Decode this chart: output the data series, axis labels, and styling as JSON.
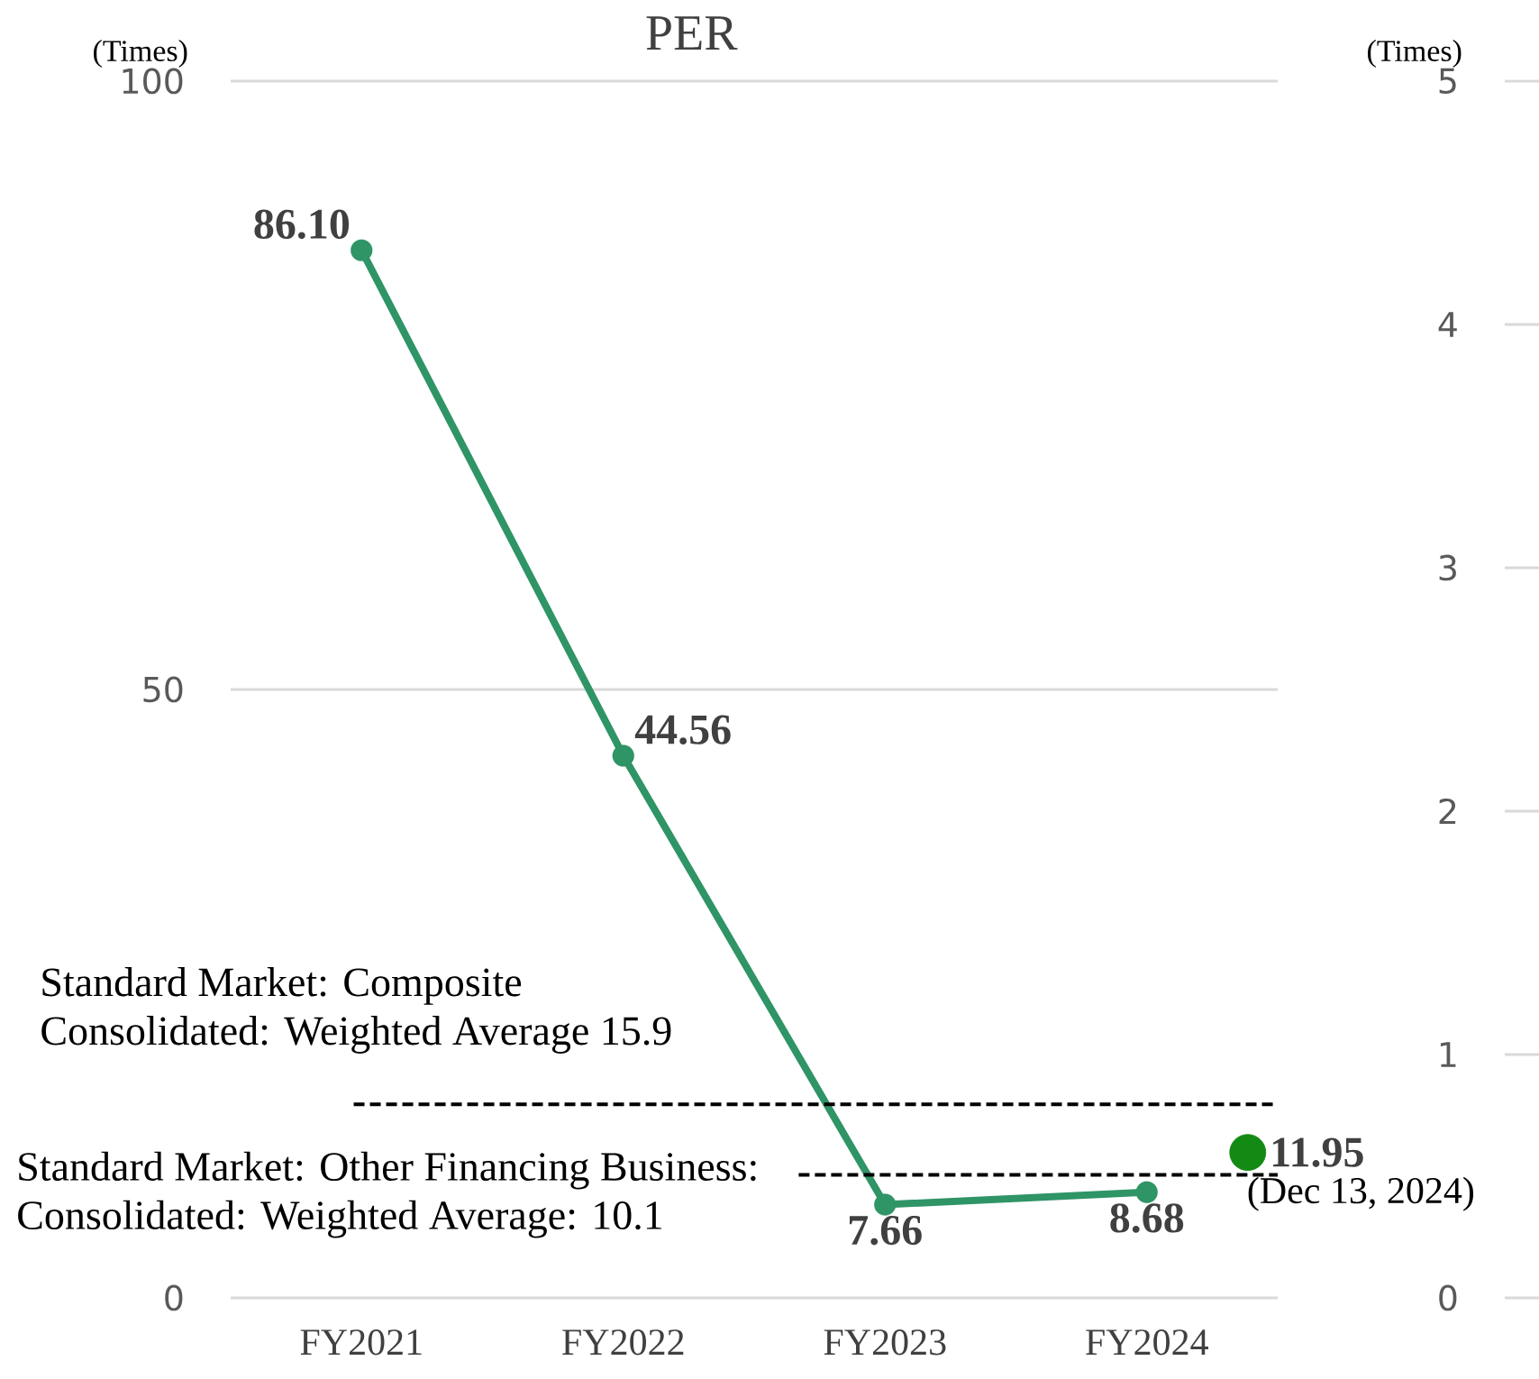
{
  "chart_data": {
    "type": "line",
    "title": "PER",
    "ylabel": "(Times)",
    "y2label": "(Times)",
    "categories": [
      "FY2021",
      "FY2022",
      "FY2023",
      "FY2024"
    ],
    "series": [
      {
        "type": "line",
        "color": "#2f9466",
        "values": [
          86.1,
          44.56,
          7.66,
          8.68
        ],
        "value_labels": [
          "86.10",
          "44.56",
          "7.66",
          "8.68"
        ]
      },
      {
        "type": "scatter",
        "color": "#138a13",
        "values": [
          null,
          null,
          null,
          11.95
        ],
        "value_labels": [
          null,
          null,
          null,
          "11.95"
        ]
      }
    ],
    "ylim": [
      0,
      100
    ],
    "yticks": [
      0,
      50,
      100
    ],
    "y2lim": [
      0,
      5
    ],
    "y2ticks": [
      0,
      1,
      2,
      3,
      4,
      5
    ],
    "grid": "y",
    "marker": "circle",
    "ref_lines": [
      {
        "axis": "y",
        "value": 15.9,
        "label": "Standard Market: Composite Consolidated: Weighted Average  15.9",
        "color": "#000000",
        "line_style": "dashed"
      },
      {
        "axis": "y",
        "value": 10.1,
        "label": "Standard Market: Other Financing Business: Consolidated: Weighted Average: 10.1",
        "color": "#000000",
        "line_style": "dashed"
      }
    ],
    "annotations": [
      "(Dec 13, 2024)"
    ]
  }
}
